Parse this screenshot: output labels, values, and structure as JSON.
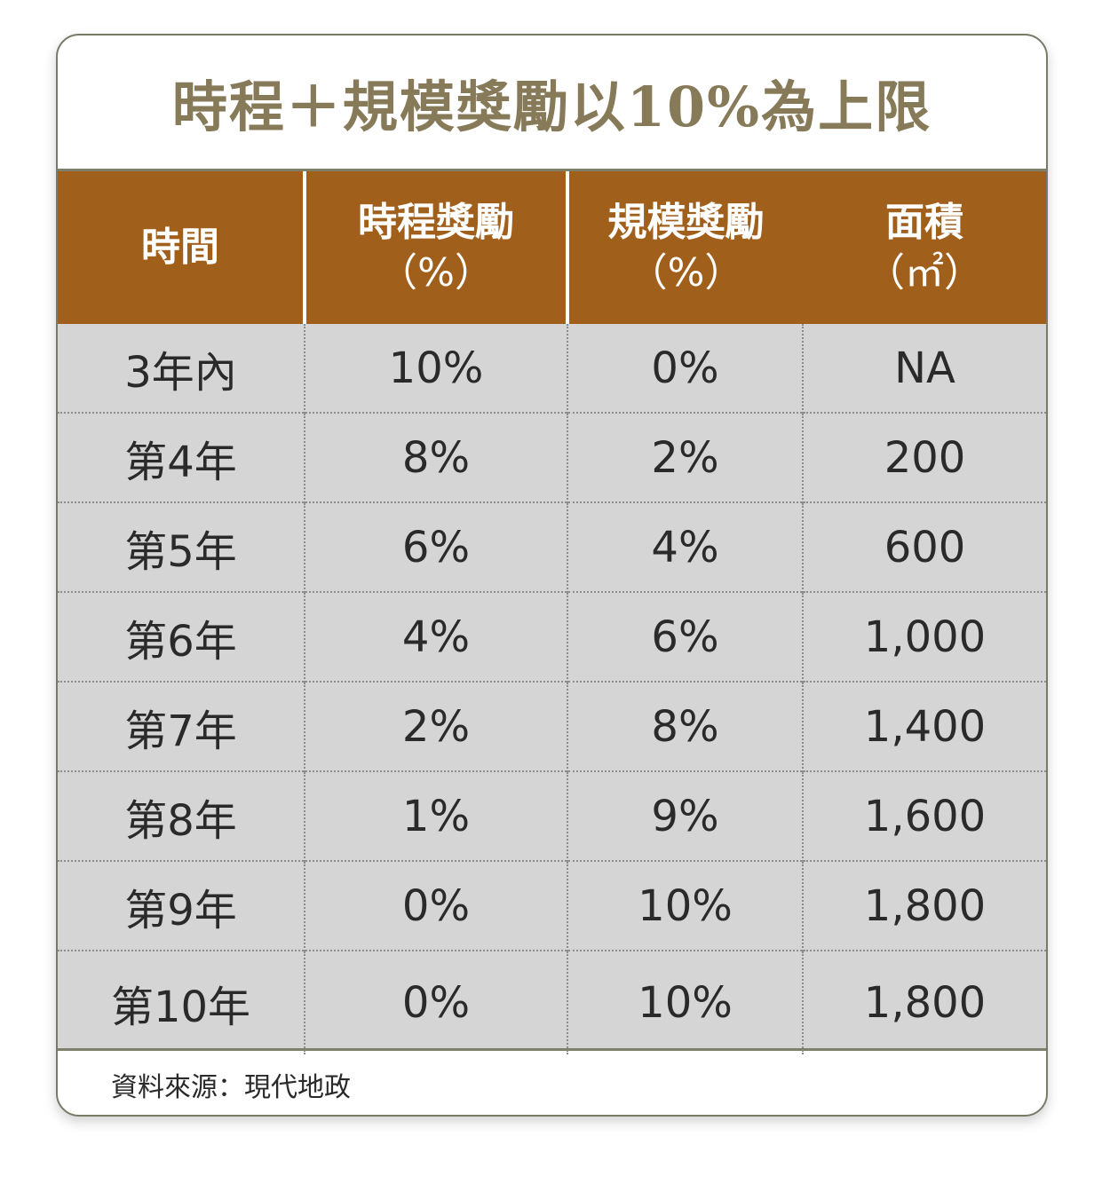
{
  "title": "時程＋規模獎勵以10%為上限",
  "chart_data": {
    "type": "table",
    "columns": [
      {
        "label": "時間",
        "unit": ""
      },
      {
        "label": "時程獎勵",
        "unit": "（%）"
      },
      {
        "label": "規模獎勵",
        "unit": "（%）"
      },
      {
        "label": "面積",
        "unit": "（㎡）"
      }
    ],
    "rows": [
      [
        "3年內",
        "10%",
        "0%",
        "NA"
      ],
      [
        "第4年",
        "8%",
        "2%",
        "200"
      ],
      [
        "第5年",
        "6%",
        "4%",
        "600"
      ],
      [
        "第6年",
        "4%",
        "6%",
        "1,000"
      ],
      [
        "第7年",
        "2%",
        "8%",
        "1,400"
      ],
      [
        "第8年",
        "1%",
        "9%",
        "1,600"
      ],
      [
        "第9年",
        "0%",
        "10%",
        "1,800"
      ],
      [
        "第10年",
        "0%",
        "10%",
        "1,800"
      ]
    ]
  },
  "source": "資料來源：現代地政",
  "colors": {
    "header_bg": "#a15f1c",
    "title": "#877a59",
    "body_bg": "#d5d5d6",
    "border": "#7f806c"
  }
}
